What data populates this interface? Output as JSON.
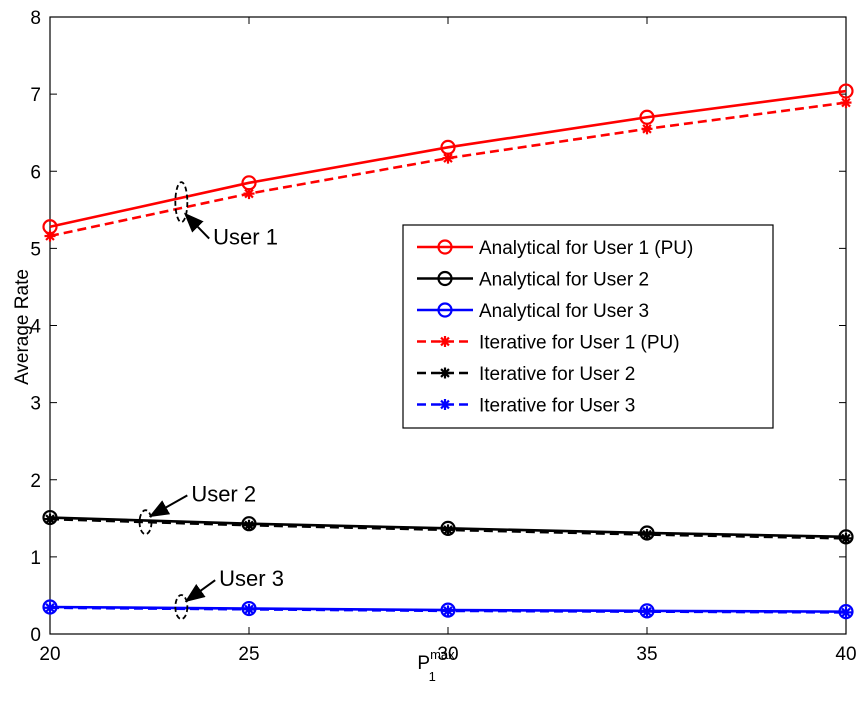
{
  "chart_data": {
    "type": "line",
    "title": "",
    "xlabel_base": "P",
    "xlabel_sup": "max",
    "xlabel_sub": "1",
    "ylabel": "Average Rate",
    "xlim": [
      20,
      40
    ],
    "ylim": [
      0,
      8
    ],
    "xticks": [
      "20",
      "25",
      "30",
      "35",
      "40"
    ],
    "yticks": [
      "0",
      "1",
      "2",
      "3",
      "4",
      "5",
      "6",
      "7",
      "8"
    ],
    "x": [
      20,
      25,
      30,
      35,
      40
    ],
    "grid": false,
    "legend_position": "center-right",
    "series": [
      {
        "name": "Analytical for User 1 (PU)",
        "values": [
          5.28,
          5.85,
          6.31,
          6.7,
          7.04
        ],
        "color": "#ff0000",
        "dash": "solid",
        "marker": "circle"
      },
      {
        "name": "Analytical for User 2",
        "values": [
          1.51,
          1.43,
          1.37,
          1.31,
          1.26
        ],
        "color": "#000000",
        "dash": "solid",
        "marker": "circle"
      },
      {
        "name": "Analytical for User 3",
        "values": [
          0.35,
          0.33,
          0.31,
          0.3,
          0.29
        ],
        "color": "#0000ff",
        "dash": "solid",
        "marker": "circle"
      },
      {
        "name": "Iterative for User 1 (PU)",
        "values": [
          5.16,
          5.71,
          6.17,
          6.55,
          6.89
        ],
        "color": "#ff0000",
        "dash": "dashed",
        "marker": "star"
      },
      {
        "name": "Iterative for User 2",
        "values": [
          1.49,
          1.41,
          1.35,
          1.29,
          1.24
        ],
        "color": "#000000",
        "dash": "dashed",
        "marker": "star"
      },
      {
        "name": "Iterative for User 3",
        "values": [
          0.34,
          0.32,
          0.3,
          0.29,
          0.28
        ],
        "color": "#0000ff",
        "dash": "dashed",
        "marker": "star"
      }
    ],
    "annotations": [
      {
        "text": "User 1",
        "ellipse_at": [
          23.3,
          5.6
        ],
        "label_at": [
          24.1,
          5.05
        ]
      },
      {
        "text": "User 2",
        "ellipse_at": [
          22.4,
          1.45
        ],
        "label_at": [
          23.4,
          1.72
        ]
      },
      {
        "text": "User 3",
        "ellipse_at": [
          23.3,
          0.35
        ],
        "label_at": [
          24.1,
          0.62
        ]
      }
    ]
  }
}
